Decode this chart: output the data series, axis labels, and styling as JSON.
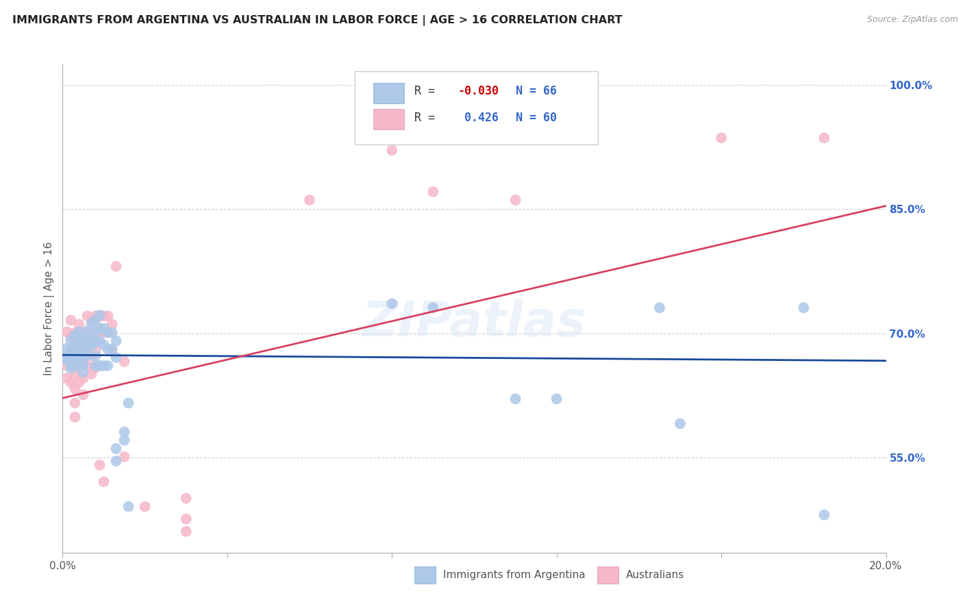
{
  "title": "IMMIGRANTS FROM ARGENTINA VS AUSTRALIAN IN LABOR FORCE | AGE > 16 CORRELATION CHART",
  "source_text": "Source: ZipAtlas.com",
  "ylabel": "In Labor Force | Age > 16",
  "ylabel_right_labels": [
    "100.0%",
    "85.0%",
    "70.0%",
    "55.0%"
  ],
  "ylabel_right_values": [
    1.0,
    0.85,
    0.7,
    0.55
  ],
  "legend_blue_r": "R = -0.030",
  "legend_blue_n": "N = 66",
  "legend_pink_r": "R =   0.426",
  "legend_pink_n": "N = 60",
  "legend_label_blue": "Immigrants from Argentina",
  "legend_label_pink": "Australians",
  "blue_color": "#adc8e8",
  "pink_color": "#f5b8c8",
  "blue_line_color": "#1a4a9a",
  "pink_line_color": "#d94060",
  "x_min": 0.0,
  "x_max": 0.2,
  "y_min": 0.435,
  "y_max": 1.025,
  "blue_points": [
    [
      0.001,
      0.682
    ],
    [
      0.001,
      0.671
    ],
    [
      0.001,
      0.668
    ],
    [
      0.002,
      0.692
    ],
    [
      0.002,
      0.678
    ],
    [
      0.002,
      0.67
    ],
    [
      0.002,
      0.663
    ],
    [
      0.002,
      0.658
    ],
    [
      0.003,
      0.698
    ],
    [
      0.003,
      0.688
    ],
    [
      0.003,
      0.681
    ],
    [
      0.003,
      0.674
    ],
    [
      0.003,
      0.667
    ],
    [
      0.003,
      0.661
    ],
    [
      0.004,
      0.702
    ],
    [
      0.004,
      0.692
    ],
    [
      0.004,
      0.683
    ],
    [
      0.004,
      0.676
    ],
    [
      0.004,
      0.669
    ],
    [
      0.004,
      0.661
    ],
    [
      0.005,
      0.696
    ],
    [
      0.005,
      0.686
    ],
    [
      0.005,
      0.679
    ],
    [
      0.005,
      0.671
    ],
    [
      0.005,
      0.662
    ],
    [
      0.005,
      0.653
    ],
    [
      0.006,
      0.703
    ],
    [
      0.006,
      0.691
    ],
    [
      0.006,
      0.681
    ],
    [
      0.006,
      0.673
    ],
    [
      0.007,
      0.712
    ],
    [
      0.007,
      0.696
    ],
    [
      0.007,
      0.686
    ],
    [
      0.008,
      0.716
    ],
    [
      0.008,
      0.702
    ],
    [
      0.008,
      0.689
    ],
    [
      0.008,
      0.673
    ],
    [
      0.008,
      0.661
    ],
    [
      0.009,
      0.722
    ],
    [
      0.009,
      0.706
    ],
    [
      0.009,
      0.691
    ],
    [
      0.009,
      0.661
    ],
    [
      0.01,
      0.706
    ],
    [
      0.01,
      0.686
    ],
    [
      0.01,
      0.661
    ],
    [
      0.011,
      0.701
    ],
    [
      0.011,
      0.681
    ],
    [
      0.011,
      0.661
    ],
    [
      0.012,
      0.701
    ],
    [
      0.012,
      0.681
    ],
    [
      0.013,
      0.691
    ],
    [
      0.013,
      0.671
    ],
    [
      0.013,
      0.561
    ],
    [
      0.013,
      0.546
    ],
    [
      0.015,
      0.581
    ],
    [
      0.015,
      0.571
    ],
    [
      0.016,
      0.616
    ],
    [
      0.016,
      0.491
    ],
    [
      0.08,
      0.736
    ],
    [
      0.09,
      0.731
    ],
    [
      0.11,
      0.621
    ],
    [
      0.12,
      0.621
    ],
    [
      0.145,
      0.731
    ],
    [
      0.15,
      0.591
    ],
    [
      0.18,
      0.731
    ],
    [
      0.185,
      0.481
    ]
  ],
  "pink_points": [
    [
      0.001,
      0.702
    ],
    [
      0.001,
      0.661
    ],
    [
      0.001,
      0.646
    ],
    [
      0.002,
      0.716
    ],
    [
      0.002,
      0.696
    ],
    [
      0.002,
      0.681
    ],
    [
      0.002,
      0.666
    ],
    [
      0.002,
      0.641
    ],
    [
      0.003,
      0.701
    ],
    [
      0.003,
      0.686
    ],
    [
      0.003,
      0.671
    ],
    [
      0.003,
      0.651
    ],
    [
      0.003,
      0.633
    ],
    [
      0.003,
      0.616
    ],
    [
      0.003,
      0.599
    ],
    [
      0.004,
      0.711
    ],
    [
      0.004,
      0.693
    ],
    [
      0.004,
      0.676
    ],
    [
      0.004,
      0.659
    ],
    [
      0.004,
      0.641
    ],
    [
      0.005,
      0.701
    ],
    [
      0.005,
      0.683
    ],
    [
      0.005,
      0.663
    ],
    [
      0.005,
      0.646
    ],
    [
      0.005,
      0.626
    ],
    [
      0.006,
      0.721
    ],
    [
      0.006,
      0.701
    ],
    [
      0.006,
      0.681
    ],
    [
      0.006,
      0.661
    ],
    [
      0.007,
      0.716
    ],
    [
      0.007,
      0.696
    ],
    [
      0.007,
      0.673
    ],
    [
      0.007,
      0.651
    ],
    [
      0.008,
      0.721
    ],
    [
      0.008,
      0.701
    ],
    [
      0.008,
      0.679
    ],
    [
      0.008,
      0.659
    ],
    [
      0.009,
      0.721
    ],
    [
      0.009,
      0.701
    ],
    [
      0.009,
      0.541
    ],
    [
      0.01,
      0.521
    ],
    [
      0.01,
      0.721
    ],
    [
      0.01,
      0.701
    ],
    [
      0.011,
      0.721
    ],
    [
      0.011,
      0.701
    ],
    [
      0.012,
      0.711
    ],
    [
      0.012,
      0.681
    ],
    [
      0.013,
      0.781
    ],
    [
      0.015,
      0.666
    ],
    [
      0.015,
      0.551
    ],
    [
      0.02,
      0.491
    ],
    [
      0.03,
      0.501
    ],
    [
      0.03,
      0.476
    ],
    [
      0.03,
      0.461
    ],
    [
      0.06,
      0.861
    ],
    [
      0.08,
      0.921
    ],
    [
      0.09,
      0.871
    ],
    [
      0.11,
      0.861
    ],
    [
      0.16,
      0.936
    ],
    [
      0.185,
      0.936
    ]
  ],
  "blue_line": {
    "x0": 0.0,
    "x1": 0.2,
    "y0": 0.674,
    "y1": 0.667
  },
  "pink_line": {
    "x0": 0.0,
    "x1": 0.2,
    "y0": 0.622,
    "y1": 0.854
  }
}
